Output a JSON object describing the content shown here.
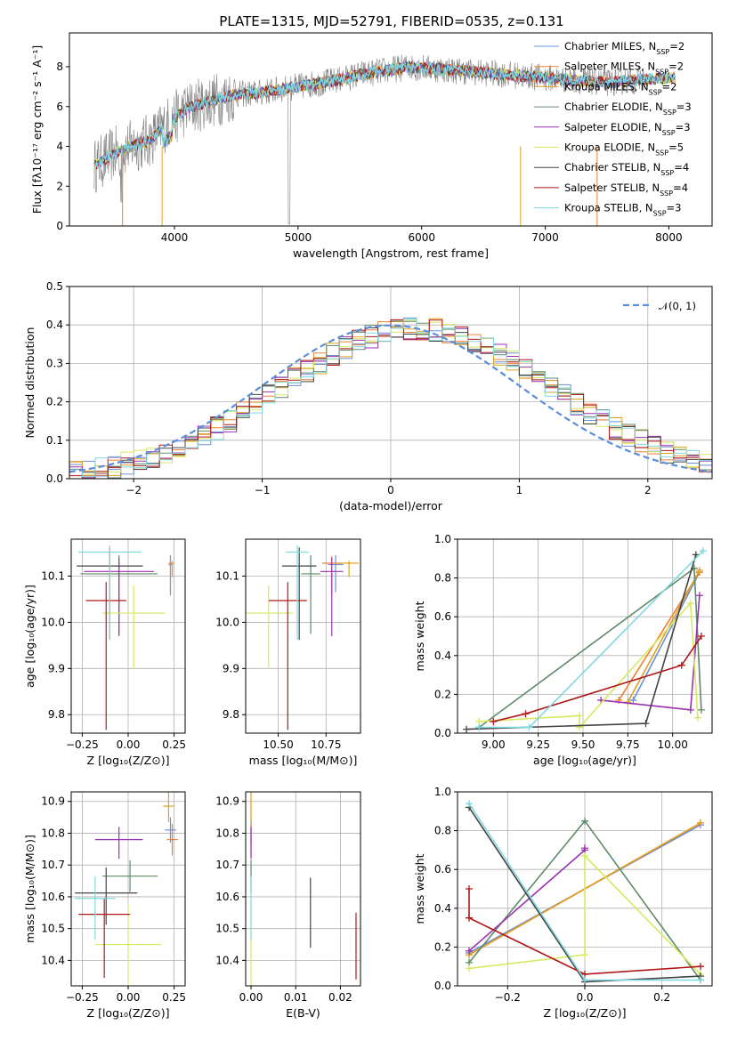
{
  "figure_title": "PLATE=1315, MJD=52791, FIBERID=0535, z=0.131",
  "colors": [
    "#6a8fd8",
    "#f08030",
    "#e0a020",
    "#5f8a6a",
    "#9a30b0",
    "#d8e860",
    "#444444",
    "#b01818",
    "#80d8e0"
  ],
  "chart_data": [
    {
      "id": "spectrum",
      "type": "line",
      "xlabel": "wavelength [Angstrom, rest frame]",
      "ylabel": "Flux [fλ10⁻¹⁷ erg cm⁻² s⁻¹ A⁻¹]",
      "xlim": [
        3150,
        8350
      ],
      "ylim": [
        0,
        9.7
      ],
      "xticks": [
        "4000",
        "5000",
        "6000",
        "7000",
        "8000"
      ],
      "yticks": [
        "0",
        "2",
        "4",
        "6",
        "8"
      ],
      "grid": false,
      "legend_position": "top-right",
      "series": [
        {
          "name": "Chabrier MILES, N",
          "sub": "SSP",
          "suffix": "=2"
        },
        {
          "name": "Salpeter MILES, N",
          "sub": "SSP",
          "suffix": "=2"
        },
        {
          "name": "Kroupa MILES, N",
          "sub": "SSP",
          "suffix": "=2"
        },
        {
          "name": "Chabrier ELODIE, N",
          "sub": "SSP",
          "suffix": "=3"
        },
        {
          "name": "Salpeter ELODIE, N",
          "sub": "SSP",
          "suffix": "=3"
        },
        {
          "name": "Kroupa ELODIE, N",
          "sub": "SSP",
          "suffix": "=5"
        },
        {
          "name": "Chabrier STELIB, N",
          "sub": "SSP",
          "suffix": "=4"
        },
        {
          "name": "Salpeter STELIB, N",
          "sub": "SSP",
          "suffix": "=4"
        },
        {
          "name": "Kroupa STELIB, N",
          "sub": "SSP",
          "suffix": "=3"
        }
      ],
      "continuum": {
        "x": [
          3350,
          3500,
          3650,
          3800,
          3950,
          4100,
          4300,
          4500,
          4700,
          4900,
          5100,
          5300,
          5500,
          5700,
          5900,
          6100,
          6300,
          6500,
          6700,
          6900,
          7100,
          7300,
          7500,
          7700,
          7900,
          8100
        ],
        "y": [
          3.0,
          3.6,
          4.0,
          4.3,
          5.2,
          5.9,
          6.3,
          6.6,
          6.7,
          6.9,
          7.1,
          7.3,
          7.6,
          7.8,
          8.0,
          7.9,
          7.8,
          7.7,
          7.6,
          7.5,
          7.4,
          7.3,
          7.2,
          7.3,
          7.4,
          7.5
        ]
      }
    },
    {
      "id": "residual-histogram",
      "type": "step",
      "xlabel": "(data-model)/error",
      "ylabel": "Normed distribution",
      "xlim": [
        -2.5,
        2.5
      ],
      "ylim": [
        0,
        0.5
      ],
      "xticks": [
        "−2",
        "−1",
        "0",
        "1",
        "2"
      ],
      "xtick_values": [
        -2,
        -1,
        0,
        1,
        2
      ],
      "yticks": [
        "0.0",
        "0.1",
        "0.2",
        "0.3",
        "0.4",
        "0.5"
      ],
      "ytick_values": [
        0,
        0.1,
        0.2,
        0.3,
        0.4,
        0.5
      ],
      "grid": true,
      "legend_position": "top-right",
      "reference_curve": {
        "label": "𝒩(0, 1)",
        "color": "#5b8ddc",
        "mean": 0,
        "sigma": 1
      },
      "bin_edges_start": -2.6,
      "bin_width": 0.1
    },
    {
      "id": "age-vs-Z",
      "type": "errorbar",
      "xlabel": "Z [log₁₀(Z/Z⊙)]",
      "ylabel": "age  [log₁₀(age/yr)]",
      "xlim": [
        -0.31,
        0.31
      ],
      "ylim": [
        9.76,
        10.18
      ],
      "xticks": [
        "−0.25",
        "0.00",
        "0.25"
      ],
      "xtick_values": [
        -0.25,
        0,
        0.25
      ],
      "yticks": [
        "9.8",
        "9.9",
        "10.0",
        "10.1"
      ],
      "ytick_values": [
        9.8,
        9.9,
        10.0,
        10.1
      ],
      "grid": true,
      "points": [
        {
          "x": 0.23,
          "xerr": 0.01,
          "y": 10.125,
          "yerr": [
            0.06,
            0.02
          ]
        },
        {
          "x": 0.23,
          "xerr": 0.01,
          "y": 10.128,
          "yerr": [
            0.07,
            0.015
          ]
        },
        {
          "x": 0.24,
          "xerr": 0.01,
          "y": 10.128,
          "yerr": [
            0.03,
            0.005
          ]
        },
        {
          "x": -0.05,
          "xerr": 0.21,
          "y": 10.105,
          "yerr": [
            0.13,
            0.04
          ]
        },
        {
          "x": -0.05,
          "xerr": 0.19,
          "y": 10.11,
          "yerr": [
            0.14,
            0.03
          ]
        },
        {
          "x": 0.03,
          "xerr": 0.17,
          "y": 10.02,
          "yerr": [
            0.12,
            0.06
          ]
        },
        {
          "x": -0.1,
          "xerr": 0.18,
          "y": 10.122,
          "yerr": [
            0.16,
            0.04
          ]
        },
        {
          "x": -0.12,
          "xerr": 0.11,
          "y": 10.047,
          "yerr": [
            0.28,
            0.04
          ]
        },
        {
          "x": -0.1,
          "xerr": 0.17,
          "y": 10.152,
          "yerr": [
            0.19,
            0.015
          ]
        }
      ]
    },
    {
      "id": "age-vs-mass",
      "type": "errorbar",
      "xlabel": "mass [log₁₀(M/M⊙)]",
      "ylabel": "",
      "xlim": [
        10.33,
        10.93
      ],
      "ylim": [
        9.76,
        10.18
      ],
      "xticks": [
        "10.50",
        "10.75"
      ],
      "xtick_values": [
        10.5,
        10.75
      ],
      "yticks": [
        "9.8",
        "9.9",
        "10.0",
        "10.1"
      ],
      "ytick_values": [
        9.8,
        9.9,
        10.0,
        10.1
      ],
      "grid": true,
      "points": [
        {
          "x": 10.8,
          "xerr": 0.04,
          "y": 10.125,
          "yerr": [
            0.06,
            0.02
          ]
        },
        {
          "x": 10.78,
          "xerr": 0.05,
          "y": 10.128,
          "yerr": [
            0.07,
            0.015
          ]
        },
        {
          "x": 10.87,
          "xerr": 0.05,
          "y": 10.128,
          "yerr": [
            0.03,
            0.005
          ]
        },
        {
          "x": 10.67,
          "xerr": 0.05,
          "y": 10.105,
          "yerr": [
            0.13,
            0.04
          ]
        },
        {
          "x": 10.78,
          "xerr": 0.06,
          "y": 10.11,
          "yerr": [
            0.14,
            0.03
          ]
        },
        {
          "x": 10.45,
          "xerr": 0.13,
          "y": 10.02,
          "yerr": [
            0.12,
            0.06
          ]
        },
        {
          "x": 10.61,
          "xerr": 0.09,
          "y": 10.122,
          "yerr": [
            0.16,
            0.04
          ]
        },
        {
          "x": 10.55,
          "xerr": 0.1,
          "y": 10.047,
          "yerr": [
            0.28,
            0.04
          ]
        },
        {
          "x": 10.6,
          "xerr": 0.06,
          "y": 10.152,
          "yerr": [
            0.19,
            0.015
          ]
        }
      ]
    },
    {
      "id": "mass-weight-vs-age",
      "type": "line",
      "xlabel": "age  [log₁₀(age/yr)]",
      "ylabel": "mass weight",
      "xlim": [
        8.8,
        10.22
      ],
      "ylim": [
        0,
        1
      ],
      "xticks": [
        "9.00",
        "9.25",
        "9.50",
        "9.75",
        "10.00"
      ],
      "xtick_values": [
        9.0,
        9.25,
        9.5,
        9.75,
        10.0
      ],
      "yticks": [
        "0.0",
        "0.2",
        "0.4",
        "0.6",
        "0.8",
        "1.0"
      ],
      "ytick_values": [
        0,
        0.2,
        0.4,
        0.6,
        0.8,
        1.0
      ],
      "grid": true,
      "series": [
        {
          "x": [
            9.78,
            10.15
          ],
          "y": [
            0.17,
            0.83
          ]
        },
        {
          "x": [
            9.7,
            10.15
          ],
          "y": [
            0.17,
            0.83
          ]
        },
        {
          "x": [
            9.75,
            10.15
          ],
          "y": [
            0.16,
            0.84
          ]
        },
        {
          "x": [
            8.92,
            10.12,
            10.16
          ],
          "y": [
            0.03,
            0.85,
            0.12
          ]
        },
        {
          "x": [
            9.6,
            10.1,
            10.15
          ],
          "y": [
            0.17,
            0.12,
            0.71
          ]
        },
        {
          "x": [
            8.92,
            9.48,
            9.48,
            10.1,
            10.14
          ],
          "y": [
            0.06,
            0.09,
            0.03,
            0.67,
            0.08
          ]
        },
        {
          "x": [
            8.85,
            9.85,
            10.13
          ],
          "y": [
            0.02,
            0.05,
            0.92
          ]
        },
        {
          "x": [
            9.0,
            9.18,
            10.05,
            10.16
          ],
          "y": [
            0.06,
            0.1,
            0.35,
            0.5
          ]
        },
        {
          "x": [
            8.92,
            9.2,
            10.17
          ],
          "y": [
            0.03,
            0.03,
            0.94
          ]
        }
      ]
    },
    {
      "id": "mass-vs-Z",
      "type": "errorbar",
      "xlabel": "Z [log₁₀(Z/Z⊙)]",
      "ylabel": "mass [log₁₀(M/M⊙)]",
      "xlim": [
        -0.31,
        0.31
      ],
      "ylim": [
        10.32,
        10.93
      ],
      "xticks": [
        "−0.25",
        "0.00",
        "0.25"
      ],
      "xtick_values": [
        -0.25,
        0,
        0.25
      ],
      "yticks": [
        "10.4",
        "10.5",
        "10.6",
        "10.7",
        "10.8",
        "10.9"
      ],
      "ytick_values": [
        10.4,
        10.5,
        10.6,
        10.7,
        10.8,
        10.9
      ],
      "grid": true,
      "points": [
        {
          "x": 0.23,
          "xerr": 0.03,
          "y": 10.81,
          "yerr": [
            0.04,
            0.04
          ]
        },
        {
          "x": 0.24,
          "xerr": 0.03,
          "y": 10.78,
          "yerr": [
            0.05,
            0.05
          ]
        },
        {
          "x": 0.22,
          "xerr": 0.03,
          "y": 10.885,
          "yerr": [
            0.05,
            0.05
          ]
        },
        {
          "x": 0.01,
          "xerr": 0.15,
          "y": 10.665,
          "yerr": [
            0.05,
            0.05
          ]
        },
        {
          "x": -0.05,
          "xerr": 0.13,
          "y": 10.78,
          "yerr": [
            0.06,
            0.04
          ]
        },
        {
          "x": 0.0,
          "xerr": 0.18,
          "y": 10.45,
          "yerr": [
            0.13,
            0.13
          ]
        },
        {
          "x": -0.12,
          "xerr": 0.17,
          "y": 10.612,
          "yerr": [
            0.1,
            0.08
          ]
        },
        {
          "x": -0.13,
          "xerr": 0.14,
          "y": 10.545,
          "yerr": [
            0.2,
            0.05
          ]
        },
        {
          "x": -0.18,
          "xerr": 0.11,
          "y": 10.595,
          "yerr": [
            0.13,
            0.07
          ]
        }
      ]
    },
    {
      "id": "mass-vs-ebv",
      "type": "errorbar",
      "xlabel": "E(B-V)",
      "ylabel": "",
      "xlim": [
        -0.0012,
        0.0245
      ],
      "ylim": [
        10.32,
        10.93
      ],
      "xticks": [
        "0.00",
        "0.01",
        "0.02"
      ],
      "xtick_values": [
        0,
        0.01,
        0.02
      ],
      "yticks": [
        "10.4",
        "10.5",
        "10.6",
        "10.7",
        "10.8",
        "10.9"
      ],
      "ytick_values": [
        10.4,
        10.5,
        10.6,
        10.7,
        10.8,
        10.9
      ],
      "grid": true,
      "points": [
        {
          "x": 0.0,
          "xerr": 0,
          "y": 10.81,
          "yerr": [
            0.04,
            0.04
          ]
        },
        {
          "x": 0.0,
          "xerr": 0,
          "y": 10.78,
          "yerr": [
            0.05,
            0.05
          ]
        },
        {
          "x": 0.0,
          "xerr": 0,
          "y": 10.885,
          "yerr": [
            0.05,
            0.05
          ]
        },
        {
          "x": 0.0,
          "xerr": 0,
          "y": 10.665,
          "yerr": [
            0.05,
            0.05
          ]
        },
        {
          "x": 0.0,
          "xerr": 0,
          "y": 10.78,
          "yerr": [
            0.06,
            0.04
          ]
        },
        {
          "x": 0.0,
          "xerr": 0,
          "y": 10.45,
          "yerr": [
            0.13,
            0.13
          ]
        },
        {
          "x": 0.0133,
          "xerr": 0,
          "y": 10.55,
          "yerr": [
            0.11,
            0.11
          ]
        },
        {
          "x": 0.0235,
          "xerr": 0,
          "y": 10.45,
          "yerr": [
            0.11,
            0.1
          ]
        },
        {
          "x": 0.0,
          "xerr": 0,
          "y": 10.595,
          "yerr": [
            0.13,
            0.07
          ]
        }
      ]
    },
    {
      "id": "mass-weight-vs-Z",
      "type": "line",
      "xlabel": "Z [log₁₀(Z/Z⊙)]",
      "ylabel": "mass weight",
      "xlim": [
        -0.33,
        0.33
      ],
      "ylim": [
        0,
        1
      ],
      "xticks": [
        "−0.2",
        "0.0",
        "0.2"
      ],
      "xtick_values": [
        -0.2,
        0,
        0.2
      ],
      "yticks": [
        "0.0",
        "0.2",
        "0.4",
        "0.6",
        "0.8",
        "1.0"
      ],
      "ytick_values": [
        0,
        0.2,
        0.4,
        0.6,
        0.8,
        1.0
      ],
      "grid": true,
      "series": [
        {
          "x": [
            -0.3,
            0.3
          ],
          "y": [
            0.17,
            0.83
          ]
        },
        {
          "x": [
            -0.3,
            0.3
          ],
          "y": [
            0.16,
            0.84
          ]
        },
        {
          "x": [
            -0.3,
            0.3
          ],
          "y": [
            0.16,
            0.84
          ]
        },
        {
          "x": [
            -0.3,
            0.0,
            0.3
          ],
          "y": [
            0.12,
            0.85,
            0.03
          ]
        },
        {
          "x": [
            -0.3,
            0.0,
            0.0
          ],
          "y": [
            0.18,
            0.7,
            0.71
          ]
        },
        {
          "x": [
            -0.3,
            0.0,
            0.0,
            0.3
          ],
          "y": [
            0.09,
            0.16,
            0.67,
            0.06
          ]
        },
        {
          "x": [
            -0.3,
            0.0,
            0.3
          ],
          "y": [
            0.92,
            0.02,
            0.05
          ]
        },
        {
          "x": [
            -0.3,
            -0.3,
            0.0,
            0.3
          ],
          "y": [
            0.5,
            0.35,
            0.06,
            0.1
          ]
        },
        {
          "x": [
            -0.3,
            0.0,
            0.3
          ],
          "y": [
            0.94,
            0.03,
            0.03
          ]
        }
      ]
    }
  ]
}
